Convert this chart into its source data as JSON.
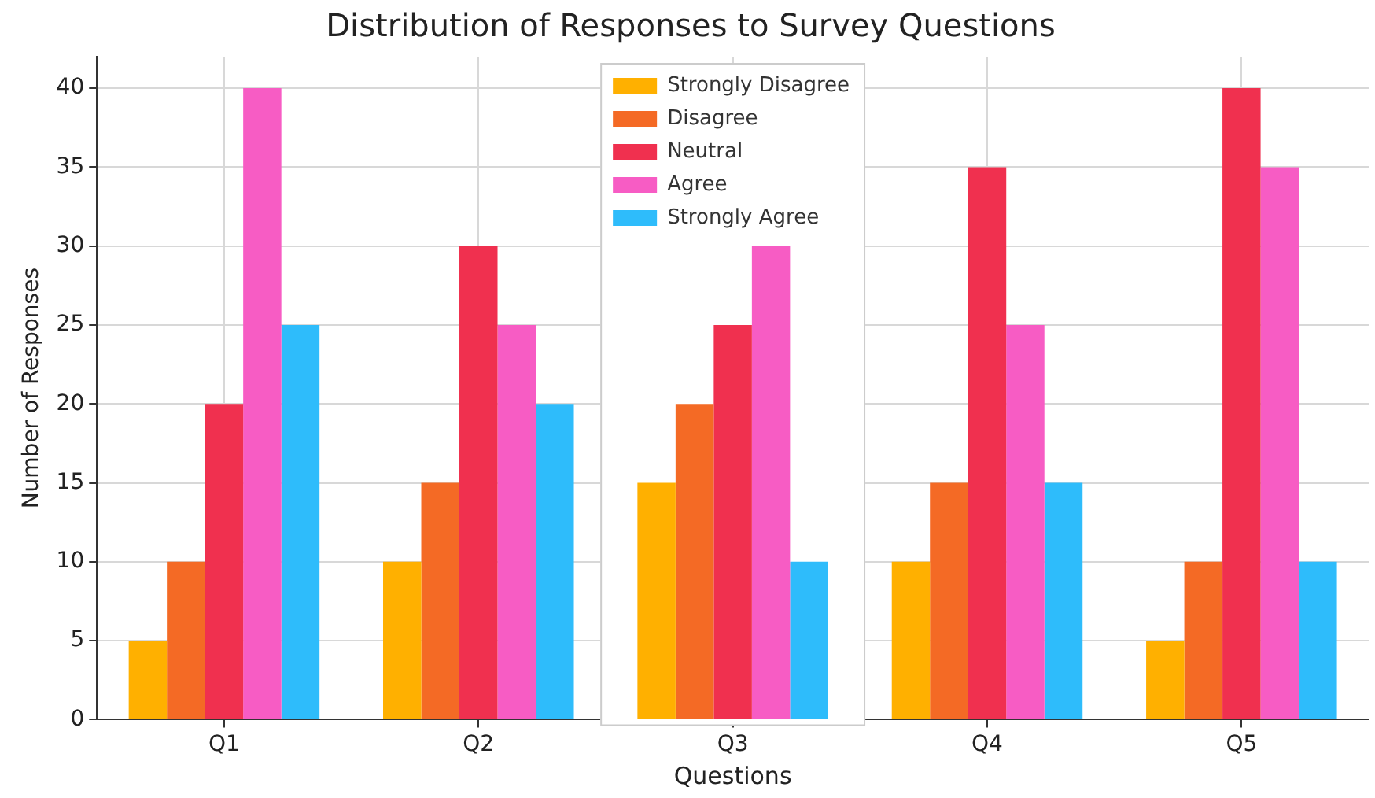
{
  "chart_data": {
    "type": "bar",
    "title": "Distribution of Responses to Survey Questions",
    "xlabel": "Questions",
    "ylabel": "Number of Responses",
    "categories": [
      "Q1",
      "Q2",
      "Q3",
      "Q4",
      "Q5"
    ],
    "series": [
      {
        "name": "Strongly Disagree",
        "color": "#ffb000",
        "values": [
          5,
          10,
          15,
          10,
          5
        ]
      },
      {
        "name": "Disagree",
        "color": "#f46a25",
        "values": [
          10,
          15,
          20,
          15,
          10
        ]
      },
      {
        "name": "Neutral",
        "color": "#f0304f",
        "values": [
          20,
          30,
          25,
          35,
          40
        ]
      },
      {
        "name": "Agree",
        "color": "#f75cc4",
        "values": [
          40,
          25,
          30,
          25,
          35
        ]
      },
      {
        "name": "Strongly Agree",
        "color": "#2ebcfb",
        "values": [
          25,
          20,
          10,
          15,
          10
        ]
      }
    ],
    "ylim": [
      0,
      42
    ],
    "yticks": [
      0,
      5,
      10,
      15,
      20,
      25,
      30,
      35,
      40
    ],
    "grid": true,
    "legend": "top"
  }
}
